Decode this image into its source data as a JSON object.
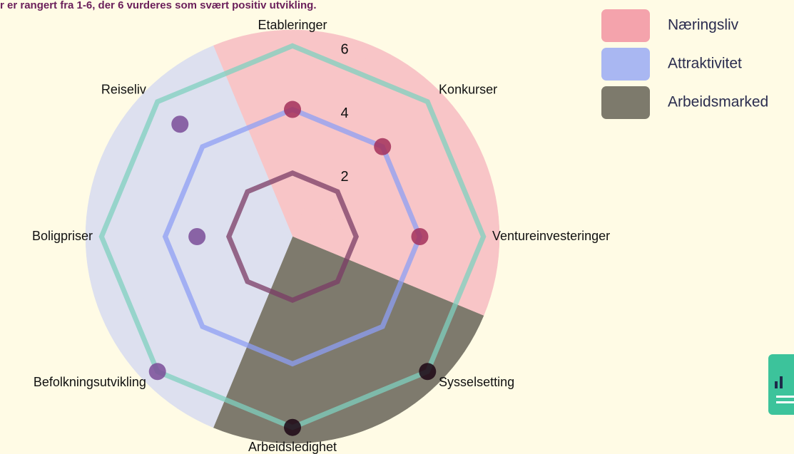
{
  "chart_data": {
    "type": "radar",
    "subtitle": "r er rangert fra 1-6, der 6 vurderes som svært positiv utvikling.",
    "categories": [
      "Etableringer",
      "Konkurser",
      "Ventureinvesteringer",
      "Sysselsetting",
      "Arbeidsledighet",
      "Befolkningsutvikling",
      "Boligpriser",
      "Reiseliv"
    ],
    "values": [
      4,
      4,
      4,
      6,
      6,
      6,
      3,
      5
    ],
    "category_group": [
      0,
      0,
      0,
      2,
      2,
      1,
      1,
      1
    ],
    "groups": [
      {
        "name": "Næringsliv",
        "color": "#f4a3ac",
        "sector_color": "#f8c5c7",
        "point_color": "#a3305a"
      },
      {
        "name": "Attraktivitet",
        "color": "#a9b7f2",
        "sector_color": "#dde0ef",
        "point_color": "#7a4c98"
      },
      {
        "name": "Arbeidsmarked",
        "color": "#7d7a6c",
        "sector_color": "#7e7a6d",
        "point_color": "#1c0614"
      }
    ],
    "ylim": [
      0,
      6.5
    ],
    "yticks": [
      2,
      4,
      6
    ],
    "ring_colors": [
      "#7b3c66",
      "#8e9ff4",
      "#7fd0bf"
    ],
    "grid": true,
    "legend": "top-right"
  }
}
